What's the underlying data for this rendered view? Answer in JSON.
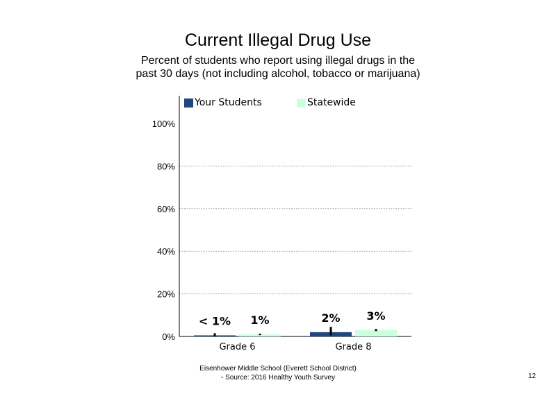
{
  "chart_data": {
    "type": "bar",
    "title": "Current Illegal Drug Use",
    "subtitle": "Percent of students who report using illegal drugs in the past 30 days (not including alcohol, tobacco or marijuana)",
    "categories": [
      "Grade 6",
      "Grade 8"
    ],
    "series": [
      {
        "name": "Your Students",
        "values": [
          0.5,
          2
        ],
        "labels": [
          "< 1%",
          "2%"
        ],
        "error": [
          [
            0,
            1.5
          ],
          [
            0.5,
            4.5
          ]
        ],
        "color": "#1f497d"
      },
      {
        "name": "Statewide",
        "values": [
          1,
          3
        ],
        "labels": [
          "1%",
          "3%"
        ],
        "error": [
          [
            0.6,
            1.3
          ],
          [
            2.5,
            3.5
          ]
        ],
        "color": "#ccffdd"
      }
    ],
    "yticks": [
      "0%",
      "20%",
      "40%",
      "60%",
      "80%",
      "100%"
    ],
    "ylim": [
      0,
      100
    ],
    "grid": true,
    "legend": "top"
  },
  "footer": {
    "line1": "Eisenhower Middle School (Everett School District)",
    "line2": "- Source: 2016 Healthy  Youth Survey"
  },
  "page_number": "12"
}
